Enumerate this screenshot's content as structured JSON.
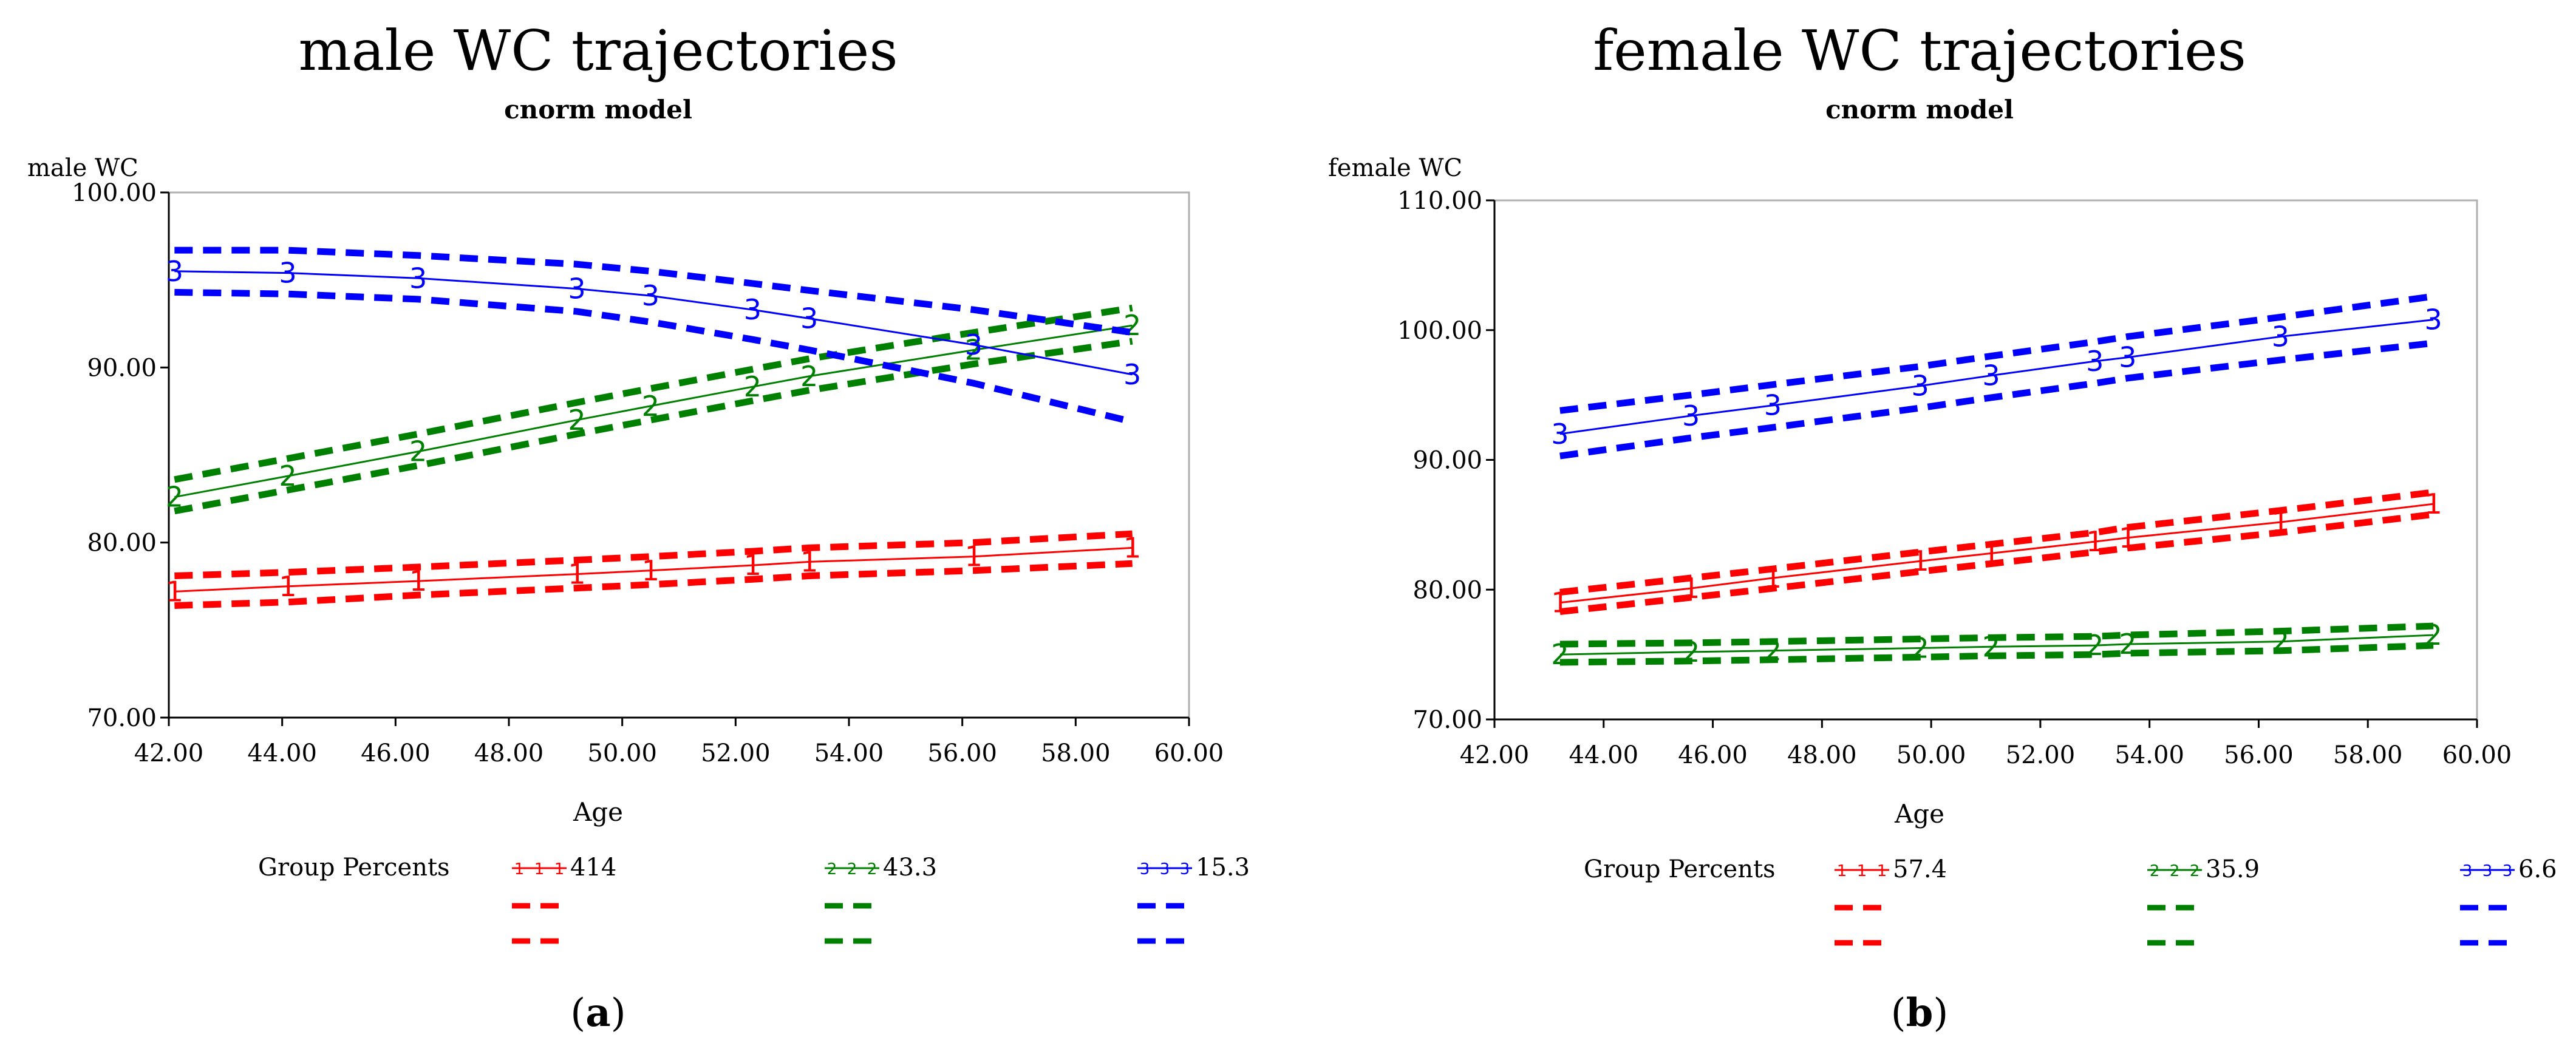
{
  "chart_data": [
    {
      "type": "line",
      "panel_label": "a",
      "title": "male WC trajectories",
      "subtitle": "cnorm model",
      "ylabel": "male WC",
      "xlabel": "Age",
      "xlim": [
        42,
        60
      ],
      "ylim": [
        70,
        100
      ],
      "x_ticks": [
        "42.00",
        "44.00",
        "46.00",
        "48.00",
        "50.00",
        "52.00",
        "54.00",
        "56.00",
        "58.00",
        "60.00"
      ],
      "y_ticks": [
        "70.00",
        "80.00",
        "90.00",
        "100.00"
      ],
      "legend_title": "Group Percents",
      "series": [
        {
          "name": "414",
          "group": "1",
          "color": "#ff0000",
          "x": [
            42.1,
            44.1,
            46.4,
            49.2,
            50.5,
            52.3,
            53.3,
            56.2,
            59.0
          ],
          "values": [
            77.2,
            77.5,
            77.8,
            78.2,
            78.4,
            78.7,
            78.9,
            79.2,
            79.7
          ],
          "upper": [
            78.1,
            78.3,
            78.6,
            79.0,
            79.2,
            79.5,
            79.7,
            80.0,
            80.5
          ],
          "lower": [
            76.4,
            76.6,
            77.0,
            77.4,
            77.6,
            77.9,
            78.1,
            78.4,
            78.8
          ]
        },
        {
          "name": "43.3",
          "group": "2",
          "color": "#008000",
          "x": [
            42.1,
            44.1,
            46.4,
            49.2,
            50.5,
            52.3,
            53.3,
            56.2,
            59.0
          ],
          "values": [
            82.6,
            83.8,
            85.2,
            87.0,
            87.8,
            88.9,
            89.5,
            91.0,
            92.4
          ],
          "upper": [
            83.6,
            84.8,
            86.2,
            88.0,
            88.8,
            89.9,
            90.5,
            92.0,
            93.4
          ],
          "lower": [
            81.8,
            83.0,
            84.4,
            86.2,
            87.0,
            88.1,
            88.7,
            90.2,
            91.5
          ]
        },
        {
          "name": "15.3",
          "group": "3",
          "color": "#0000ff",
          "x": [
            42.1,
            44.1,
            46.4,
            49.2,
            50.5,
            52.3,
            53.3,
            56.2,
            59.0
          ],
          "values": [
            95.5,
            95.4,
            95.1,
            94.5,
            94.1,
            93.3,
            92.8,
            91.3,
            89.6
          ],
          "upper": [
            96.7,
            96.7,
            96.4,
            95.9,
            95.5,
            94.8,
            94.4,
            93.3,
            92.0
          ],
          "lower": [
            94.3,
            94.2,
            93.9,
            93.2,
            92.6,
            91.6,
            91.0,
            89.1,
            86.9
          ]
        }
      ]
    },
    {
      "type": "line",
      "panel_label": "b",
      "title": "female WC trajectories",
      "subtitle": "cnorm model",
      "ylabel": "female WC",
      "xlabel": "Age",
      "xlim": [
        42,
        60
      ],
      "ylim": [
        70,
        110
      ],
      "x_ticks": [
        "42.00",
        "44.00",
        "46.00",
        "48.00",
        "50.00",
        "52.00",
        "54.00",
        "56.00",
        "58.00",
        "60.00"
      ],
      "y_ticks": [
        "70.00",
        "80.00",
        "90.00",
        "100.00",
        "110.00"
      ],
      "legend_title": "Group Percents",
      "series": [
        {
          "name": "57.4",
          "group": "1",
          "color": "#ff0000",
          "x": [
            43.2,
            45.6,
            47.1,
            49.8,
            51.1,
            53.0,
            53.6,
            56.4,
            59.2
          ],
          "values": [
            79.0,
            80.1,
            80.9,
            82.2,
            82.8,
            83.7,
            84.0,
            85.2,
            86.6
          ],
          "upper": [
            79.8,
            80.9,
            81.6,
            82.9,
            83.5,
            84.4,
            84.8,
            86.1,
            87.5
          ],
          "lower": [
            78.3,
            79.4,
            80.1,
            81.4,
            82.0,
            82.9,
            83.2,
            84.4,
            85.8
          ]
        },
        {
          "name": "35.9",
          "group": "2",
          "color": "#008000",
          "x": [
            43.2,
            45.6,
            47.1,
            49.8,
            51.1,
            53.0,
            53.6,
            56.4,
            59.2
          ],
          "values": [
            75.0,
            75.2,
            75.3,
            75.5,
            75.6,
            75.7,
            75.8,
            76.0,
            76.5
          ],
          "upper": [
            75.8,
            75.9,
            76.0,
            76.2,
            76.3,
            76.4,
            76.5,
            76.8,
            77.2
          ],
          "lower": [
            74.4,
            74.5,
            74.6,
            74.8,
            74.9,
            75.0,
            75.1,
            75.3,
            75.7
          ]
        },
        {
          "name": "6.6",
          "group": "3",
          "color": "#0000ff",
          "x": [
            43.2,
            45.6,
            47.1,
            49.8,
            51.1,
            53.0,
            53.6,
            56.4,
            59.2
          ],
          "values": [
            92.0,
            93.4,
            94.2,
            95.7,
            96.5,
            97.6,
            97.9,
            99.5,
            100.8
          ],
          "upper": [
            93.8,
            95.0,
            95.8,
            97.2,
            98.0,
            99.1,
            99.5,
            101.0,
            102.6
          ],
          "lower": [
            90.3,
            91.7,
            92.5,
            94.0,
            94.8,
            95.9,
            96.3,
            97.7,
            99.0
          ]
        }
      ]
    }
  ]
}
